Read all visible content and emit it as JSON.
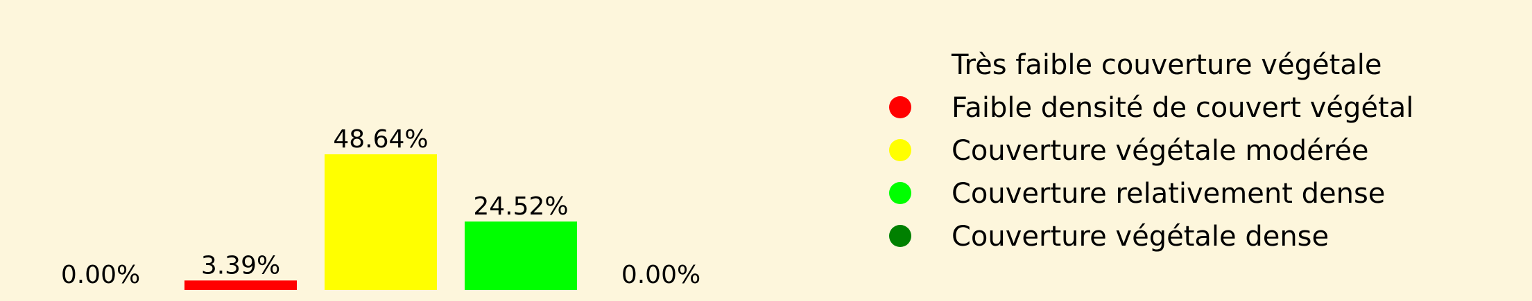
{
  "chart_data": {
    "type": "bar",
    "categories": [
      "Très faible couverture végétale",
      "Faible densité de couvert végétal",
      "Couverture végétale modérée",
      "Couverture relativement dense",
      "Couverture végétale dense"
    ],
    "values": [
      0.0,
      3.39,
      48.64,
      24.52,
      0.0
    ],
    "value_labels": [
      "0.00%",
      "3.39%",
      "48.64%",
      "24.52%",
      "0.00%"
    ],
    "colors": [
      "#fdf6dc",
      "#ff0000",
      "#ffff00",
      "#00ff00",
      "#008000"
    ],
    "ylim": [
      0,
      50
    ],
    "grid": false,
    "legend_position": "right",
    "background": "#fdf6dc"
  }
}
